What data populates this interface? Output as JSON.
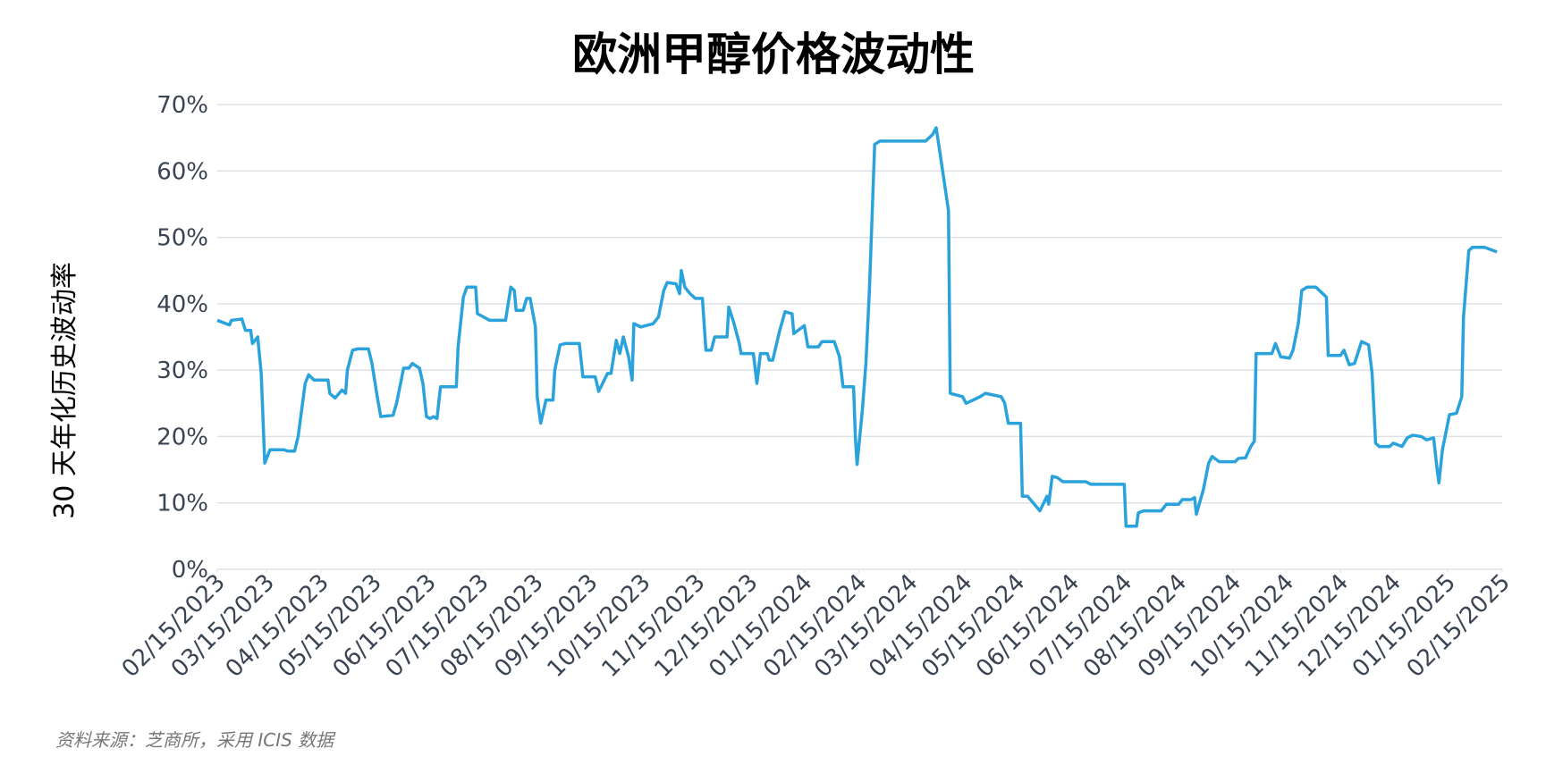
{
  "chart_data": {
    "type": "line",
    "title": "欧洲甲醇价格波动性",
    "y_label": "30 天年化历史波动率",
    "source": "资料来源：芝商所，采用 ICIS 数据",
    "color": "#2aa3dc",
    "grid": true,
    "xlim": [
      "2023-02-15",
      "2025-02-15"
    ],
    "xticks": [
      {
        "value": "2023-02-15",
        "label": "02/15/2023"
      },
      {
        "value": "2023-03-15",
        "label": "03/15/2023"
      },
      {
        "value": "2023-04-15",
        "label": "04/15/2023"
      },
      {
        "value": "2023-05-15",
        "label": "05/15/2023"
      },
      {
        "value": "2023-06-15",
        "label": "06/15/2023"
      },
      {
        "value": "2023-07-15",
        "label": "07/15/2023"
      },
      {
        "value": "2023-08-15",
        "label": "08/15/2023"
      },
      {
        "value": "2023-09-15",
        "label": "09/15/2023"
      },
      {
        "value": "2023-10-15",
        "label": "10/15/2023"
      },
      {
        "value": "2023-11-15",
        "label": "11/15/2023"
      },
      {
        "value": "2023-12-15",
        "label": "12/15/2023"
      },
      {
        "value": "2024-01-15",
        "label": "01/15/2024"
      },
      {
        "value": "2024-02-15",
        "label": "02/15/2024"
      },
      {
        "value": "2024-03-15",
        "label": "03/15/2024"
      },
      {
        "value": "2024-04-15",
        "label": "04/15/2024"
      },
      {
        "value": "2024-05-15",
        "label": "05/15/2024"
      },
      {
        "value": "2024-06-15",
        "label": "06/15/2024"
      },
      {
        "value": "2024-07-15",
        "label": "07/15/2024"
      },
      {
        "value": "2024-08-15",
        "label": "08/15/2024"
      },
      {
        "value": "2024-09-15",
        "label": "09/15/2024"
      },
      {
        "value": "2024-10-15",
        "label": "10/15/2024"
      },
      {
        "value": "2024-11-15",
        "label": "11/15/2024"
      },
      {
        "value": "2024-12-15",
        "label": "12/15/2024"
      },
      {
        "value": "2025-01-15",
        "label": "01/15/2025"
      },
      {
        "value": "2025-02-15",
        "label": "02/15/2025"
      }
    ],
    "ylim": [
      0,
      70
    ],
    "yticks": [
      {
        "value": 0,
        "label": "0%"
      },
      {
        "value": 10,
        "label": "10%"
      },
      {
        "value": 20,
        "label": "20%"
      },
      {
        "value": 30,
        "label": "30%"
      },
      {
        "value": 40,
        "label": "40%"
      },
      {
        "value": 50,
        "label": "50%"
      },
      {
        "value": 60,
        "label": "60%"
      },
      {
        "value": 70,
        "label": "70%"
      }
    ],
    "x": [
      "2023-02-15",
      "2023-02-22",
      "2023-02-23",
      "2023-03-01",
      "2023-03-03",
      "2023-03-06",
      "2023-03-07",
      "2023-03-10",
      "2023-03-12",
      "2023-03-14",
      "2023-03-17",
      "2023-03-25",
      "2023-03-27",
      "2023-03-31",
      "2023-04-02",
      "2023-04-06",
      "2023-04-08",
      "2023-04-11",
      "2023-04-19",
      "2023-04-20",
      "2023-04-23",
      "2023-04-27",
      "2023-04-29",
      "2023-04-30",
      "2023-05-03",
      "2023-05-06",
      "2023-05-12",
      "2023-05-14",
      "2023-05-17",
      "2023-05-19",
      "2023-05-26",
      "2023-05-28",
      "2023-06-01",
      "2023-06-04",
      "2023-06-06",
      "2023-06-10",
      "2023-06-12",
      "2023-06-14",
      "2023-06-16",
      "2023-06-18",
      "2023-06-20",
      "2023-06-22",
      "2023-07-01",
      "2023-07-02",
      "2023-07-05",
      "2023-07-07",
      "2023-07-12",
      "2023-07-13",
      "2023-07-20",
      "2023-07-29",
      "2023-08-01",
      "2023-08-03",
      "2023-08-04",
      "2023-08-08",
      "2023-08-10",
      "2023-08-12",
      "2023-08-15",
      "2023-08-16",
      "2023-08-18",
      "2023-08-21",
      "2023-08-25",
      "2023-08-26",
      "2023-08-29",
      "2023-09-01",
      "2023-09-09",
      "2023-09-11",
      "2023-09-18",
      "2023-09-20",
      "2023-09-25",
      "2023-09-27",
      "2023-09-30",
      "2023-10-02",
      "2023-10-04",
      "2023-10-07",
      "2023-10-09",
      "2023-10-10",
      "2023-10-14",
      "2023-10-21",
      "2023-10-24",
      "2023-10-27",
      "2023-10-29",
      "2023-11-03",
      "2023-11-05",
      "2023-11-06",
      "2023-11-08",
      "2023-11-11",
      "2023-11-14",
      "2023-11-18",
      "2023-11-20",
      "2023-11-23",
      "2023-11-25",
      "2023-12-02",
      "2023-12-03",
      "2023-12-06",
      "2023-12-09",
      "2023-12-10",
      "2023-12-17",
      "2023-12-19",
      "2023-12-21",
      "2023-12-25",
      "2023-12-26",
      "2023-12-28",
      "2024-01-01",
      "2024-01-04",
      "2024-01-08",
      "2024-01-09",
      "2024-01-15",
      "2024-01-17",
      "2024-01-23",
      "2024-01-25",
      "2024-02-01",
      "2024-02-04",
      "2024-02-06",
      "2024-02-12",
      "2024-02-13",
      "2024-02-14",
      "2024-02-17",
      "2024-02-19",
      "2024-02-21",
      "2024-02-24",
      "2024-02-27",
      "2024-03-07",
      "2024-03-24",
      "2024-03-28",
      "2024-03-30",
      "2024-04-01",
      "2024-04-06",
      "2024-04-07",
      "2024-04-14",
      "2024-04-16",
      "2024-04-24",
      "2024-04-27",
      "2024-05-06",
      "2024-05-08",
      "2024-05-10",
      "2024-05-17",
      "2024-05-18",
      "2024-05-21",
      "2024-05-28",
      "2024-06-01",
      "2024-06-02",
      "2024-06-04",
      "2024-06-07",
      "2024-06-10",
      "2024-06-23",
      "2024-06-26",
      "2024-07-01",
      "2024-07-15",
      "2024-07-16",
      "2024-07-22",
      "2024-07-23",
      "2024-07-26",
      "2024-08-05",
      "2024-08-08",
      "2024-08-15",
      "2024-08-17",
      "2024-08-22",
      "2024-08-24",
      "2024-08-25",
      "2024-08-29",
      "2024-09-01",
      "2024-09-03",
      "2024-09-07",
      "2024-09-16",
      "2024-09-18",
      "2024-09-22",
      "2024-09-25",
      "2024-09-27",
      "2024-09-28",
      "2024-10-07",
      "2024-10-09",
      "2024-10-12",
      "2024-10-17",
      "2024-10-19",
      "2024-10-22",
      "2024-10-24",
      "2024-10-27",
      "2024-11-01",
      "2024-11-05",
      "2024-11-07",
      "2024-11-08",
      "2024-11-15",
      "2024-11-17",
      "2024-11-20",
      "2024-11-23",
      "2024-11-27",
      "2024-12-01",
      "2024-12-03",
      "2024-12-05",
      "2024-12-07",
      "2024-12-13",
      "2024-12-15",
      "2024-12-20",
      "2024-12-23",
      "2024-12-26",
      "2024-12-31",
      "2025-01-03",
      "2025-01-07",
      "2025-01-09",
      "2025-01-10",
      "2025-01-12",
      "2025-01-16",
      "2025-01-20",
      "2025-01-23",
      "2025-01-24",
      "2025-01-27",
      "2025-01-29",
      "2025-02-05",
      "2025-02-12"
    ],
    "values": [
      37.5,
      36.8,
      37.5,
      37.7,
      36,
      36,
      34,
      35,
      29.5,
      16,
      18,
      18,
      17.8,
      17.8,
      20,
      28,
      29.3,
      28.5,
      28.5,
      26.5,
      25.8,
      27,
      26.5,
      30,
      33,
      33.2,
      33.2,
      31,
      26,
      23,
      23.2,
      25,
      30.3,
      30.3,
      31,
      30.3,
      28,
      23,
      22.7,
      23,
      22.7,
      27.5,
      27.5,
      33.5,
      41,
      42.5,
      42.5,
      38.5,
      37.5,
      37.5,
      42.5,
      42,
      39,
      39,
      40.8,
      40.8,
      36.5,
      26,
      22,
      25.5,
      25.5,
      30,
      33.8,
      34,
      34,
      29,
      29,
      26.8,
      29.5,
      29.5,
      34.5,
      32.5,
      35,
      32,
      28.5,
      37,
      36.5,
      37,
      38,
      42,
      43.2,
      43,
      41.5,
      45,
      42.5,
      41.5,
      40.8,
      40.8,
      33,
      33,
      35,
      35,
      39.5,
      37,
      34,
      32.5,
      32.5,
      28,
      32.5,
      32.5,
      31.5,
      31.5,
      36,
      38.8,
      38.5,
      35.5,
      36.7,
      33.5,
      33.5,
      34.3,
      34.3,
      32,
      27.5,
      27.5,
      20,
      15.8,
      24,
      31,
      42,
      64,
      64.5,
      64.5,
      64.5,
      65.5,
      66.5,
      63,
      54,
      26.5,
      26,
      25,
      26,
      26.5,
      26,
      25,
      22,
      22,
      11,
      11,
      8.8,
      11,
      9.8,
      14,
      13.8,
      13.2,
      13.2,
      12.8,
      12.8,
      12.8,
      6.5,
      6.5,
      8.5,
      8.8,
      8.8,
      9.8,
      9.8,
      10.5,
      10.5,
      10.8,
      8.3,
      12,
      16,
      17,
      16.2,
      16.2,
      16.7,
      16.8,
      18.5,
      19.3,
      32.5,
      32.5,
      34,
      32,
      31.8,
      33,
      37,
      42,
      42.5,
      42.5,
      41.5,
      41,
      32.2,
      32.2,
      33,
      30.8,
      31,
      34.3,
      33.8,
      29.5,
      19,
      18.5,
      18.5,
      19,
      18.5,
      19.8,
      20.2,
      20,
      19.5,
      19.8,
      15,
      13,
      18,
      23.3,
      23.5,
      26,
      38,
      48,
      48.5,
      48.5,
      47.8
    ]
  }
}
